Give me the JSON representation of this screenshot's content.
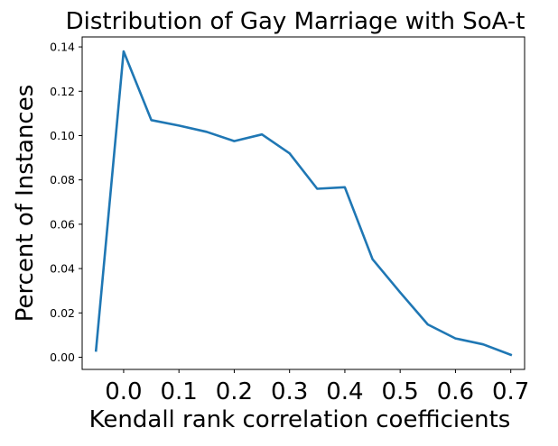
{
  "chart_data": {
    "type": "line",
    "title": "Distribution of Gay Marriage with SoA-t",
    "xlabel": "Kendall rank correlation coefficients",
    "ylabel": "Percent of Instances",
    "xlim": [
      -0.075,
      0.725
    ],
    "ylim": [
      -0.0055,
      0.1445
    ],
    "x_ticks": [
      0.0,
      0.1,
      0.2,
      0.3,
      0.4,
      0.5,
      0.6,
      0.7
    ],
    "x_tick_labels": [
      "0.0",
      "0.1",
      "0.2",
      "0.3",
      "0.4",
      "0.5",
      "0.6",
      "0.7"
    ],
    "y_ticks": [
      0.0,
      0.02,
      0.04,
      0.06,
      0.08,
      0.1,
      0.12,
      0.14
    ],
    "y_tick_labels": [
      "0.00",
      "0.02",
      "0.04",
      "0.06",
      "0.08",
      "0.10",
      "0.12",
      "0.14"
    ],
    "grid": false,
    "series": [
      {
        "color": "#1f77b4",
        "x": [
          -0.05,
          0.0,
          0.05,
          0.1,
          0.15,
          0.2,
          0.25,
          0.3,
          0.35,
          0.4,
          0.45,
          0.5,
          0.55,
          0.6,
          0.65,
          0.7
        ],
        "y": [
          0.003,
          0.138,
          0.107,
          0.1045,
          0.1017,
          0.0975,
          0.1005,
          0.092,
          0.076,
          0.0767,
          0.0442,
          0.0292,
          0.0148,
          0.0085,
          0.0058,
          0.0011
        ]
      }
    ]
  }
}
